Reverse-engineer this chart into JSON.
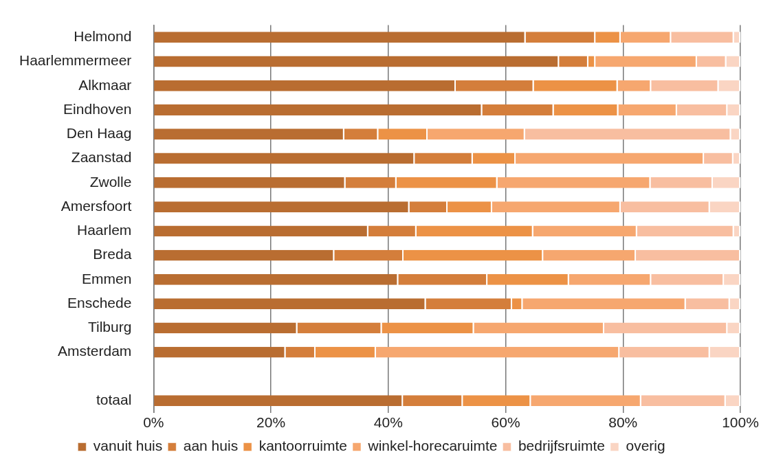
{
  "chart_data": {
    "type": "bar",
    "orientation": "horizontal",
    "stacked": true,
    "categories": [
      "Helmond",
      "Haarlemmermeer",
      "Alkmaar",
      "Eindhoven",
      "Den Haag",
      "Zaanstad",
      "Zwolle",
      "Amersfoort",
      "Haarlem",
      "Breda",
      "Emmen",
      "Enschede",
      "Tilburg",
      "Amsterdam",
      null,
      "totaal"
    ],
    "series": [
      {
        "name": "vanuit huis",
        "color": "#b96d31",
        "values": [
          63.4,
          69.1,
          51.5,
          56.0,
          32.5,
          44.5,
          32.7,
          43.6,
          36.6,
          30.8,
          41.7,
          46.4,
          24.5,
          22.5,
          null,
          42.5
        ]
      },
      {
        "name": "aan huis",
        "color": "#d47e3b",
        "values": [
          11.9,
          5.0,
          13.3,
          12.2,
          5.8,
          9.9,
          8.7,
          6.5,
          8.2,
          11.8,
          15.2,
          14.7,
          14.4,
          5.1,
          null,
          10.2
        ]
      },
      {
        "name": "kantoorruimte",
        "color": "#ec9246",
        "values": [
          4.3,
          1.2,
          14.3,
          11.0,
          8.4,
          7.3,
          17.2,
          7.6,
          19.9,
          23.8,
          13.9,
          1.8,
          15.7,
          10.3,
          null,
          11.6
        ]
      },
      {
        "name": "winkel-horecaruimte",
        "color": "#f6a76f",
        "values": [
          8.6,
          17.3,
          5.7,
          10.0,
          16.6,
          32.1,
          26.1,
          21.9,
          17.7,
          15.8,
          14.0,
          27.8,
          22.2,
          41.5,
          null,
          18.8
        ]
      },
      {
        "name": "bedrijfsruimte",
        "color": "#f8bea0",
        "values": [
          10.7,
          5.0,
          11.5,
          8.6,
          35.1,
          5.0,
          10.6,
          15.2,
          16.5,
          17.8,
          12.4,
          7.5,
          21.0,
          15.4,
          null,
          14.4
        ]
      },
      {
        "name": "overig",
        "color": "#fad5c3",
        "values": [
          1.1,
          2.4,
          3.7,
          2.2,
          1.6,
          1.2,
          4.7,
          5.2,
          1.1,
          0,
          2.8,
          1.8,
          2.2,
          5.2,
          null,
          2.5
        ]
      }
    ],
    "xlim": [
      0,
      100
    ],
    "xticks": [
      {
        "value": 0,
        "label": "0%"
      },
      {
        "value": 20,
        "label": "20%"
      },
      {
        "value": 40,
        "label": "40%"
      },
      {
        "value": 60,
        "label": "60%"
      },
      {
        "value": 80,
        "label": "80%"
      },
      {
        "value": 100,
        "label": "100%"
      }
    ],
    "grid": "x",
    "legend": "bottom"
  }
}
